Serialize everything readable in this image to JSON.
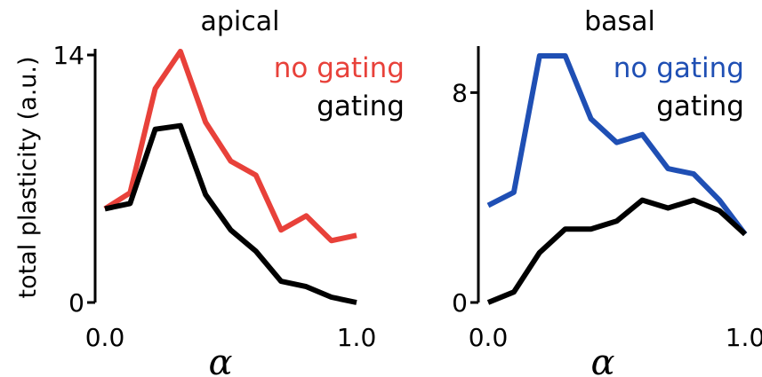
{
  "ylabel": "total plasticity (a.u.)",
  "chart_data": [
    {
      "type": "line",
      "title": "apical",
      "xlabel": "α",
      "xlim": [
        0,
        1
      ],
      "ylim": [
        0,
        14
      ],
      "xticks": [
        "0.0",
        "1.0"
      ],
      "yticks": [
        "0",
        "14"
      ],
      "grid": false,
      "legend_position": "top-right",
      "series": [
        {
          "name": "no gating",
          "color": "#e8413a",
          "x": [
            0,
            0.1,
            0.2,
            0.3,
            0.4,
            0.5,
            0.6,
            0.7,
            0.8,
            0.9,
            1.0
          ],
          "values": [
            5.3,
            6.2,
            12.1,
            14.2,
            10.2,
            8.0,
            7.2,
            4.1,
            4.9,
            3.5,
            3.8
          ]
        },
        {
          "name": "gating",
          "color": "#000000",
          "x": [
            0,
            0.1,
            0.2,
            0.3,
            0.4,
            0.5,
            0.6,
            0.7,
            0.8,
            0.9,
            1.0
          ],
          "values": [
            5.3,
            5.6,
            9.8,
            10.0,
            6.1,
            4.1,
            2.9,
            1.2,
            0.9,
            0.3,
            0.0
          ]
        }
      ]
    },
    {
      "type": "line",
      "title": "basal",
      "xlabel": "α",
      "xlim": [
        0,
        1
      ],
      "ylim": [
        0,
        9.5
      ],
      "xticks": [
        "0.0",
        "1.0"
      ],
      "yticks": [
        "0",
        "8"
      ],
      "grid": false,
      "legend_position": "top-right",
      "series": [
        {
          "name": "no gating",
          "color": "#1f4fb4",
          "x": [
            0,
            0.1,
            0.2,
            0.3,
            0.4,
            0.5,
            0.6,
            0.7,
            0.8,
            0.9,
            1.0
          ],
          "values": [
            3.7,
            4.2,
            9.4,
            9.4,
            7.0,
            6.1,
            6.4,
            5.1,
            4.9,
            3.9,
            2.6
          ]
        },
        {
          "name": "gating",
          "color": "#000000",
          "x": [
            0,
            0.1,
            0.2,
            0.3,
            0.4,
            0.5,
            0.6,
            0.7,
            0.8,
            0.9,
            1.0
          ],
          "values": [
            0.0,
            0.4,
            1.9,
            2.8,
            2.8,
            3.1,
            3.9,
            3.6,
            3.9,
            3.5,
            2.6
          ]
        }
      ]
    }
  ]
}
